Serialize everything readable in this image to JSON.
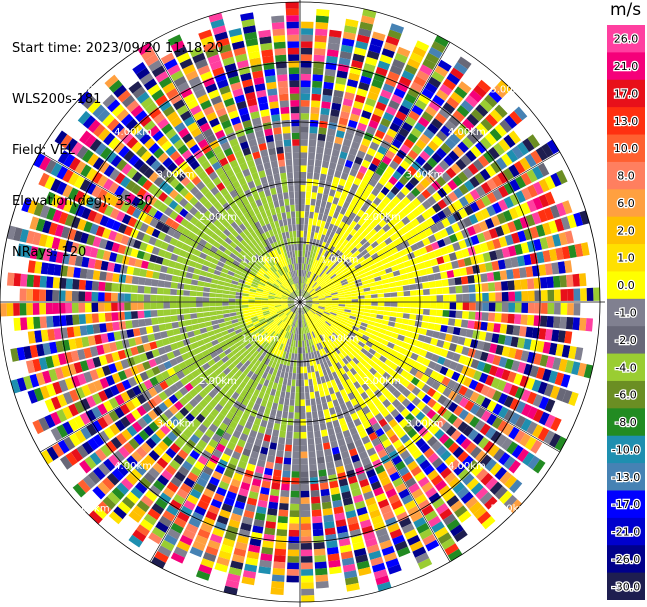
{
  "info": {
    "start_time": "Start time: 2023/09/20 11:18:20",
    "instrument": "WLS200s-181",
    "field": "Field: VEL",
    "elevation": "Elevation(deg): 35.30",
    "nrays": "NRays: 120"
  },
  "colorbar": {
    "unit": "m/s",
    "bins": [
      {
        "label": "26.0",
        "color": "#ff3fa0"
      },
      {
        "label": "21.0",
        "color": "#f5007a"
      },
      {
        "label": "17.0",
        "color": "#e8101a"
      },
      {
        "label": "13.0",
        "color": "#ff3010"
      },
      {
        "label": "10.0",
        "color": "#ff6030"
      },
      {
        "label": "8.0",
        "color": "#ff7f5f"
      },
      {
        "label": "6.0",
        "color": "#ffa040"
      },
      {
        "label": "2.0",
        "color": "#ffc000"
      },
      {
        "label": "1.0",
        "color": "#ffe000"
      },
      {
        "label": "0.0",
        "color": "#ffff00"
      },
      {
        "label": "-1.0",
        "color": "#808090"
      },
      {
        "label": "-2.0",
        "color": "#686878"
      },
      {
        "label": "-4.0",
        "color": "#9acd32"
      },
      {
        "label": "-6.0",
        "color": "#6b8e23"
      },
      {
        "label": "-8.0",
        "color": "#228b22"
      },
      {
        "label": "-10.0",
        "color": "#1e8fb0"
      },
      {
        "label": "-13.0",
        "color": "#4682b4"
      },
      {
        "label": "-17.0",
        "color": "#0000ff"
      },
      {
        "label": "-21.0",
        "color": "#0000cd"
      },
      {
        "label": "-26.0",
        "color": "#00008b"
      },
      {
        "label": "-30.0",
        "color": "#1e1e50"
      }
    ]
  },
  "ring_labels": [
    "1.00km",
    "2.00km",
    "3.00km",
    "4.00km",
    "5.00km"
  ]
}
